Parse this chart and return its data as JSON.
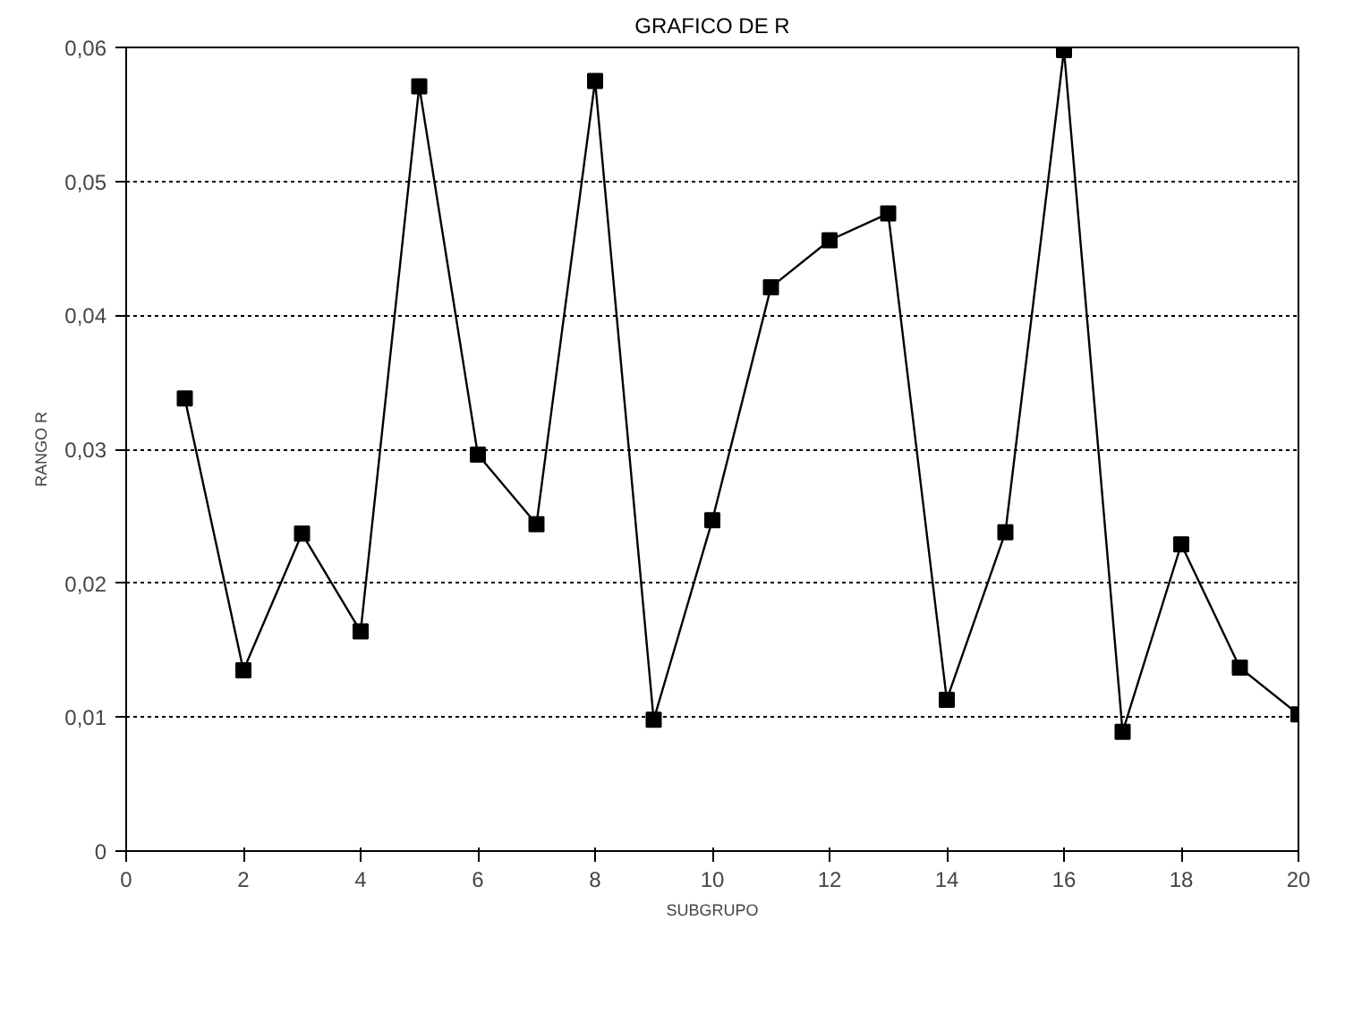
{
  "chart_data": {
    "type": "line",
    "title": "GRAFICO DE R",
    "xlabel": "SUBGRUPO",
    "ylabel": "RANGO R",
    "x": [
      1,
      2,
      3,
      4,
      5,
      6,
      7,
      8,
      9,
      10,
      11,
      12,
      13,
      14,
      15,
      16,
      17,
      18,
      19,
      20
    ],
    "series": [
      {
        "color": "#000000",
        "values": [
          0.0338,
          0.0135,
          0.0237,
          0.0164,
          0.0571,
          0.0296,
          0.0244,
          0.0575,
          0.0098,
          0.0247,
          0.0421,
          0.0456,
          0.0476,
          0.0113,
          0.0238,
          0.0598,
          0.0089,
          0.0229,
          0.0137,
          0.0102
        ]
      }
    ],
    "xlim": [
      0,
      20
    ],
    "xticks": [
      0,
      2,
      4,
      6,
      8,
      10,
      12,
      14,
      16,
      18,
      20
    ],
    "ylim": [
      0,
      0.06
    ],
    "yticks": [
      {
        "value": 0,
        "label": "0"
      },
      {
        "value": 0.01,
        "label": "0,01"
      },
      {
        "value": 0.02,
        "label": "0,02"
      },
      {
        "value": 0.03,
        "label": "0,03"
      },
      {
        "value": 0.04,
        "label": "0,04"
      },
      {
        "value": 0.05,
        "label": "0,05"
      },
      {
        "value": 0.06,
        "label": "0,06"
      }
    ],
    "grid": "y",
    "marker": "square",
    "line_style": "solid"
  }
}
